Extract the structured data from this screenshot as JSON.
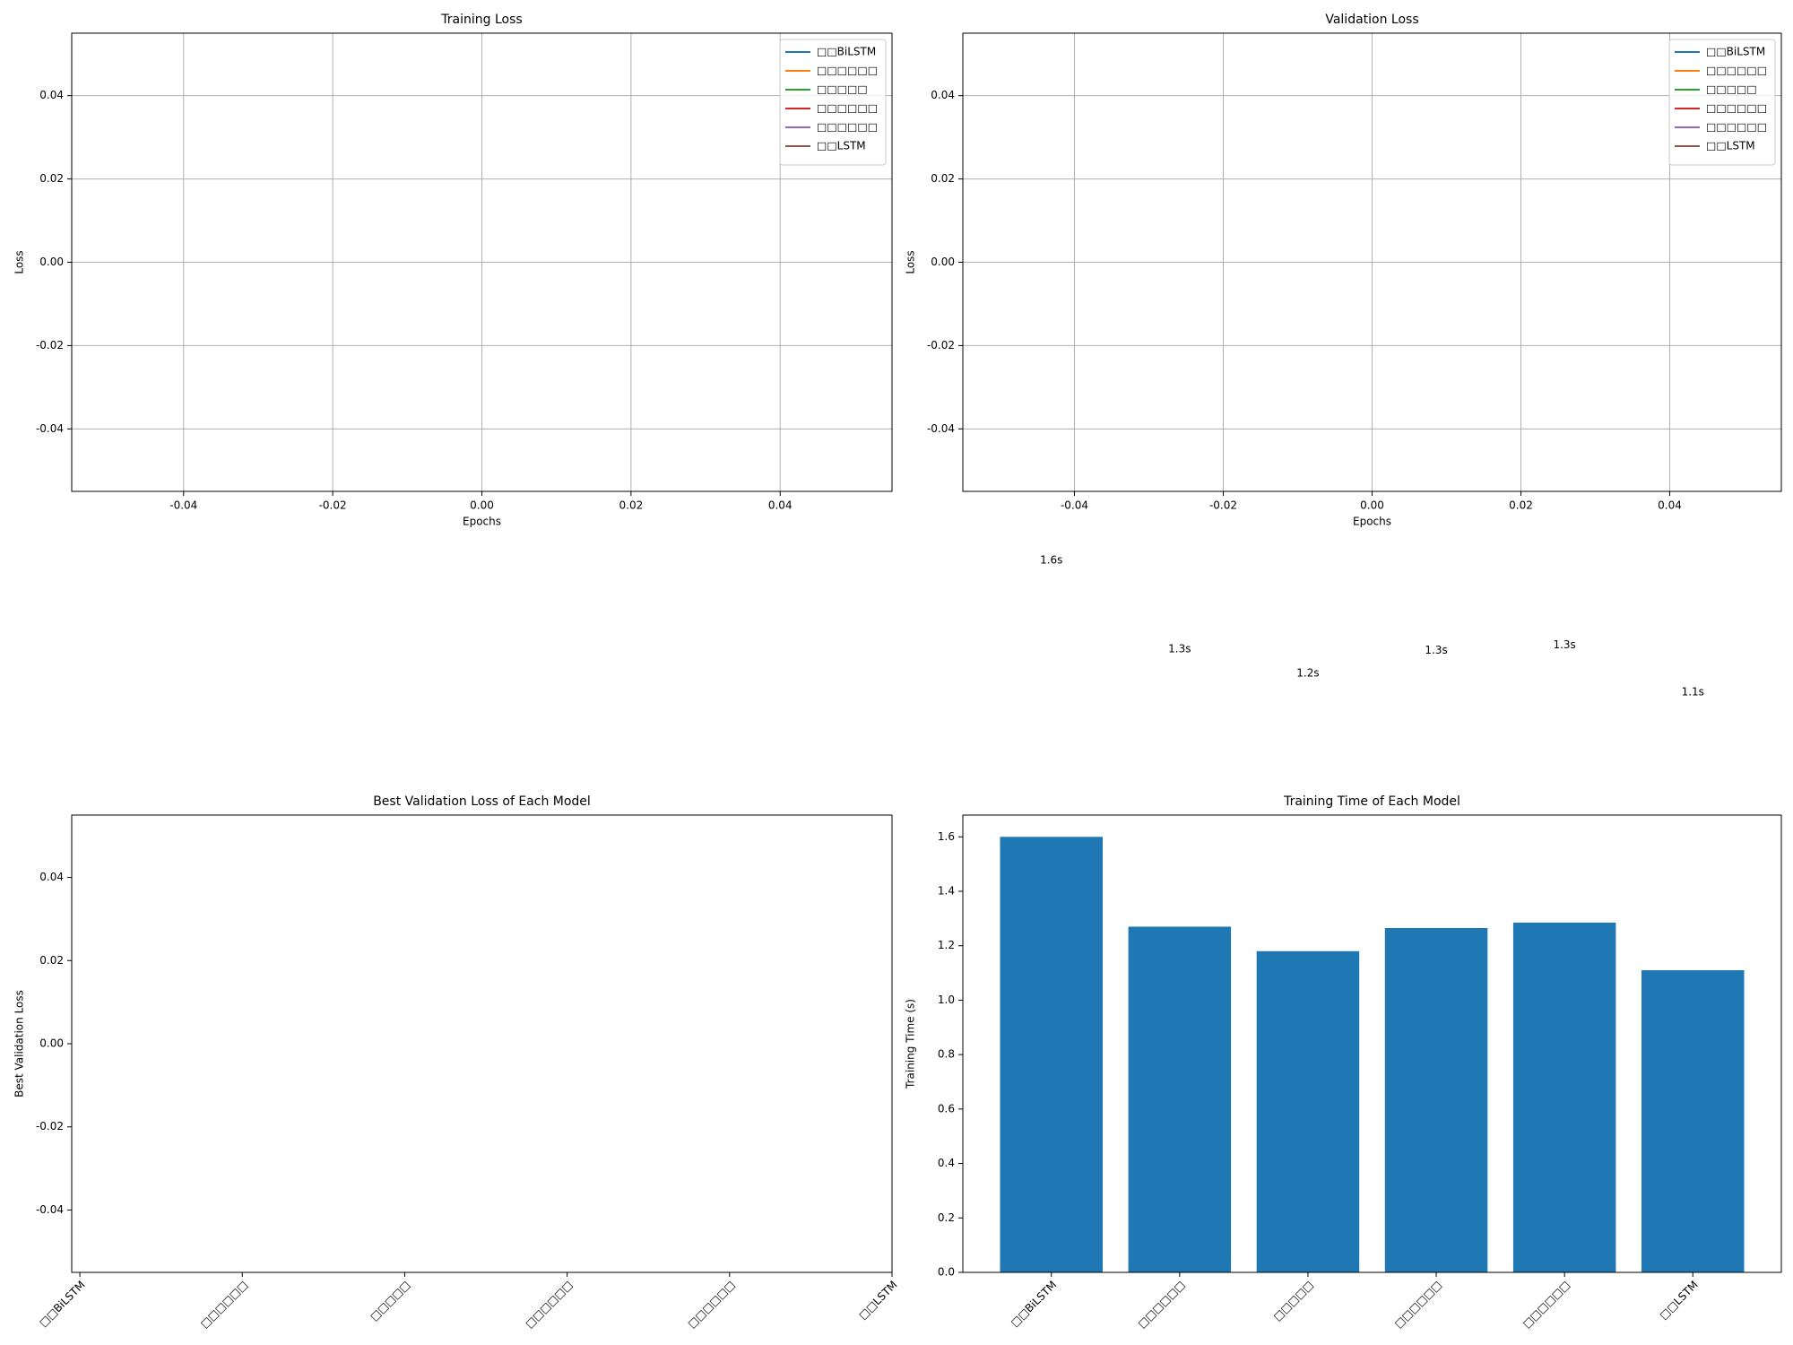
{
  "chart_data": [
    {
      "type": "line",
      "title": "Training Loss",
      "xlabel": "Epochs",
      "ylabel": "Loss",
      "x": [],
      "series": [
        {
          "name": "□□BiLSTM",
          "color": "#1f77b4",
          "values": []
        },
        {
          "name": "□□□□□□",
          "color": "#ff7f0e",
          "values": []
        },
        {
          "name": "□□□□□",
          "color": "#2ca02c",
          "values": []
        },
        {
          "name": "□□□□□□",
          "color": "#d62728",
          "values": []
        },
        {
          "name": "□□□□□□",
          "color": "#9467bd",
          "values": []
        },
        {
          "name": "□□LSTM",
          "color": "#8c564b",
          "values": []
        }
      ],
      "xlim": [
        -0.055,
        0.055
      ],
      "xticks": [
        -0.04,
        -0.02,
        {
          "value": 0,
          "label": "0.00"
        },
        0.02,
        0.04
      ],
      "ylim": [
        -0.055,
        0.055
      ],
      "yticks": [
        -0.04,
        -0.02,
        {
          "value": 0,
          "label": "0.00"
        },
        0.02,
        0.04
      ],
      "grid": true,
      "legend": "upper right"
    },
    {
      "type": "line",
      "title": "Validation Loss",
      "xlabel": "Epochs",
      "ylabel": "Loss",
      "x": [],
      "series": [
        {
          "name": "□□BiLSTM",
          "color": "#1f77b4",
          "values": []
        },
        {
          "name": "□□□□□□",
          "color": "#ff7f0e",
          "values": []
        },
        {
          "name": "□□□□□",
          "color": "#2ca02c",
          "values": []
        },
        {
          "name": "□□□□□□",
          "color": "#d62728",
          "values": []
        },
        {
          "name": "□□□□□□",
          "color": "#9467bd",
          "values": []
        },
        {
          "name": "□□LSTM",
          "color": "#8c564b",
          "values": []
        }
      ],
      "xlim": [
        -0.055,
        0.055
      ],
      "xticks": [
        -0.04,
        -0.02,
        {
          "value": 0,
          "label": "0.00"
        },
        0.02,
        0.04
      ],
      "ylim": [
        -0.055,
        0.055
      ],
      "yticks": [
        -0.04,
        -0.02,
        {
          "value": 0,
          "label": "0.00"
        },
        0.02,
        0.04
      ],
      "grid": true,
      "legend": "upper right"
    },
    {
      "type": "bar",
      "title": "Best Validation Loss of Each Model",
      "ylabel": "Best Validation Loss",
      "categories": [
        "□□BiLSTM",
        "□□□□□□",
        "□□□□□",
        "□□□□□□",
        "□□□□□□",
        "□□LSTM"
      ],
      "values": [
        null,
        null,
        null,
        null,
        null,
        null
      ],
      "color": "#1f77b4",
      "ylim": [
        -0.055,
        0.055
      ],
      "yticks": [
        -0.04,
        -0.02,
        {
          "value": 0,
          "label": "0.00"
        },
        0.02,
        0.04
      ],
      "grid": false
    },
    {
      "type": "bar",
      "title": "Training Time of Each Model",
      "ylabel": "Training Time (s)",
      "categories": [
        "□□BiLSTM",
        "□□□□□□",
        "□□□□□",
        "□□□□□□",
        "□□□□□□",
        "□□LSTM"
      ],
      "values": [
        1.6,
        1.27,
        1.18,
        1.265,
        1.285,
        1.11
      ],
      "value_labels": [
        "1.6s",
        "1.3s",
        "1.2s",
        "1.3s",
        "1.3s",
        "1.1s"
      ],
      "color": "#1f77b4",
      "ylim": [
        0,
        1.68
      ],
      "yticks": [
        {
          "value": 0,
          "label": "0.0"
        },
        0.2,
        0.4,
        0.6,
        0.8,
        {
          "value": 1,
          "label": "1.0"
        },
        1.2,
        1.4,
        1.6
      ],
      "grid": false
    }
  ]
}
